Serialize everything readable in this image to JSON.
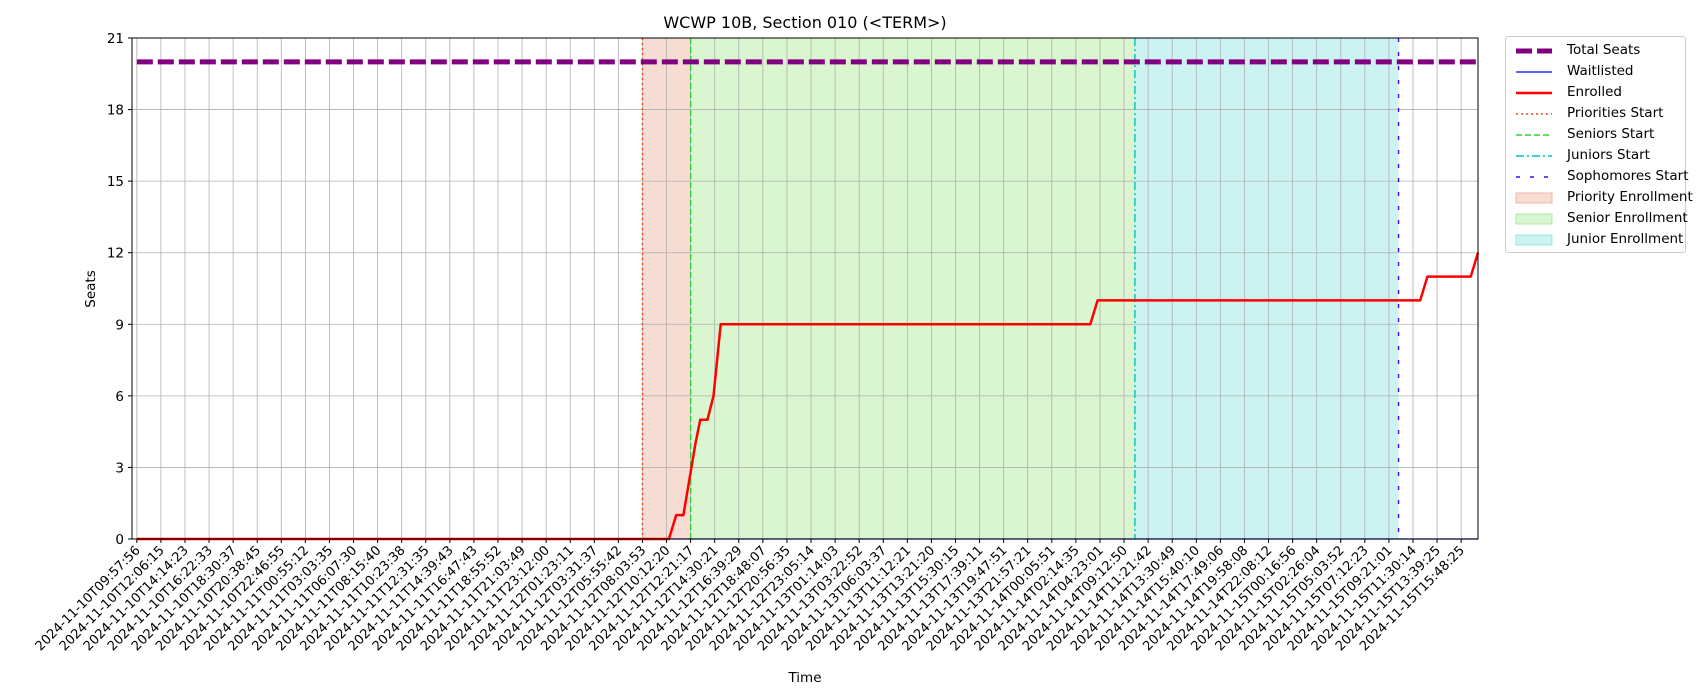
{
  "chart_data": {
    "type": "line",
    "title": "WCWP 10B, Section 010 (<TERM>)",
    "xlabel": "Time",
    "ylabel": "Seats",
    "ylim": [
      0,
      21
    ],
    "yticks": [
      0,
      3,
      6,
      9,
      12,
      15,
      18,
      21
    ],
    "grid": true,
    "legend_position": "outside-upper-right",
    "x_tick_labels": [
      "2024-11-10T09:57:56",
      "2024-11-10T12:06:15",
      "2024-11-10T14:14:23",
      "2024-11-10T16:22:33",
      "2024-11-10T18:30:37",
      "2024-11-10T20:38:45",
      "2024-11-10T22:46:55",
      "2024-11-11T00:55:12",
      "2024-11-11T03:03:35",
      "2024-11-11T06:07:30",
      "2024-11-11T08:15:40",
      "2024-11-11T10:23:38",
      "2024-11-11T12:31:35",
      "2024-11-11T14:39:43",
      "2024-11-11T16:47:43",
      "2024-11-11T18:55:52",
      "2024-11-11T21:03:49",
      "2024-11-11T23:12:00",
      "2024-11-12T01:23:11",
      "2024-11-12T03:31:37",
      "2024-11-12T05:55:42",
      "2024-11-12T08:03:53",
      "2024-11-12T10:12:20",
      "2024-11-12T12:21:17",
      "2024-11-12T14:30:21",
      "2024-11-12T16:39:29",
      "2024-11-12T18:48:07",
      "2024-11-12T20:56:35",
      "2024-11-12T23:05:14",
      "2024-11-13T01:14:03",
      "2024-11-13T03:22:52",
      "2024-11-13T06:03:37",
      "2024-11-13T11:12:21",
      "2024-11-13T13:21:20",
      "2024-11-13T15:30:15",
      "2024-11-13T17:39:11",
      "2024-11-13T19:47:51",
      "2024-11-13T21:57:21",
      "2024-11-14T00:05:51",
      "2024-11-14T02:14:35",
      "2024-11-14T04:23:01",
      "2024-11-14T09:12:50",
      "2024-11-14T11:21:42",
      "2024-11-14T13:30:49",
      "2024-11-14T15:40:10",
      "2024-11-14T17:49:06",
      "2024-11-14T19:58:08",
      "2024-11-14T22:08:12",
      "2024-11-15T00:16:56",
      "2024-11-15T02:26:04",
      "2024-11-15T05:03:52",
      "2024-11-15T07:12:23",
      "2024-11-15T09:21:01",
      "2024-11-15T11:30:14",
      "2024-11-15T13:39:25",
      "2024-11-15T15:48:25"
    ],
    "series": [
      {
        "name": "Total Seats",
        "color": "#800080",
        "style": "dashed",
        "points": [
          [
            0,
            20
          ],
          [
            55.7,
            20
          ]
        ]
      },
      {
        "name": "Waitlisted",
        "color": "#0000ff",
        "style": "solid",
        "points": [
          [
            0,
            0
          ],
          [
            55.7,
            0
          ]
        ]
      },
      {
        "name": "Enrolled",
        "color": "#ff0000",
        "style": "solid",
        "points": [
          [
            0,
            0
          ],
          [
            22.1,
            0
          ],
          [
            22.4,
            1
          ],
          [
            22.7,
            1
          ],
          [
            23.2,
            4
          ],
          [
            23.4,
            5
          ],
          [
            23.7,
            5
          ],
          [
            23.95,
            6
          ],
          [
            24.25,
            9
          ],
          [
            39.6,
            9
          ],
          [
            39.9,
            10
          ],
          [
            53.3,
            10
          ],
          [
            53.6,
            11
          ],
          [
            55.4,
            11
          ],
          [
            55.7,
            12
          ]
        ]
      }
    ],
    "markers": [
      {
        "name": "Priorities Start",
        "x": 21.0,
        "color": "#ff4500",
        "style": "dotted"
      },
      {
        "name": "Seniors Start",
        "x": 23.0,
        "color": "#32cd32",
        "style": "dashed"
      },
      {
        "name": "Juniors Start",
        "x": 41.45,
        "color": "#00bfbf",
        "style": "dashdot"
      },
      {
        "name": "Sophomores Start",
        "x": 52.4,
        "color": "#4b00ff",
        "style": "loosedash"
      }
    ],
    "regions": [
      {
        "name": "Priority Enrollment",
        "x_start": 21.0,
        "x_end": 23.0,
        "color": "#f6dcd2"
      },
      {
        "name": "Senior Enrollment",
        "x_start": 23.0,
        "x_end": 41.45,
        "color": "#d9f6d1"
      },
      {
        "name": "Junior Enrollment",
        "x_start": 41.45,
        "x_end": 52.4,
        "color": "#cdf2f2"
      }
    ]
  }
}
